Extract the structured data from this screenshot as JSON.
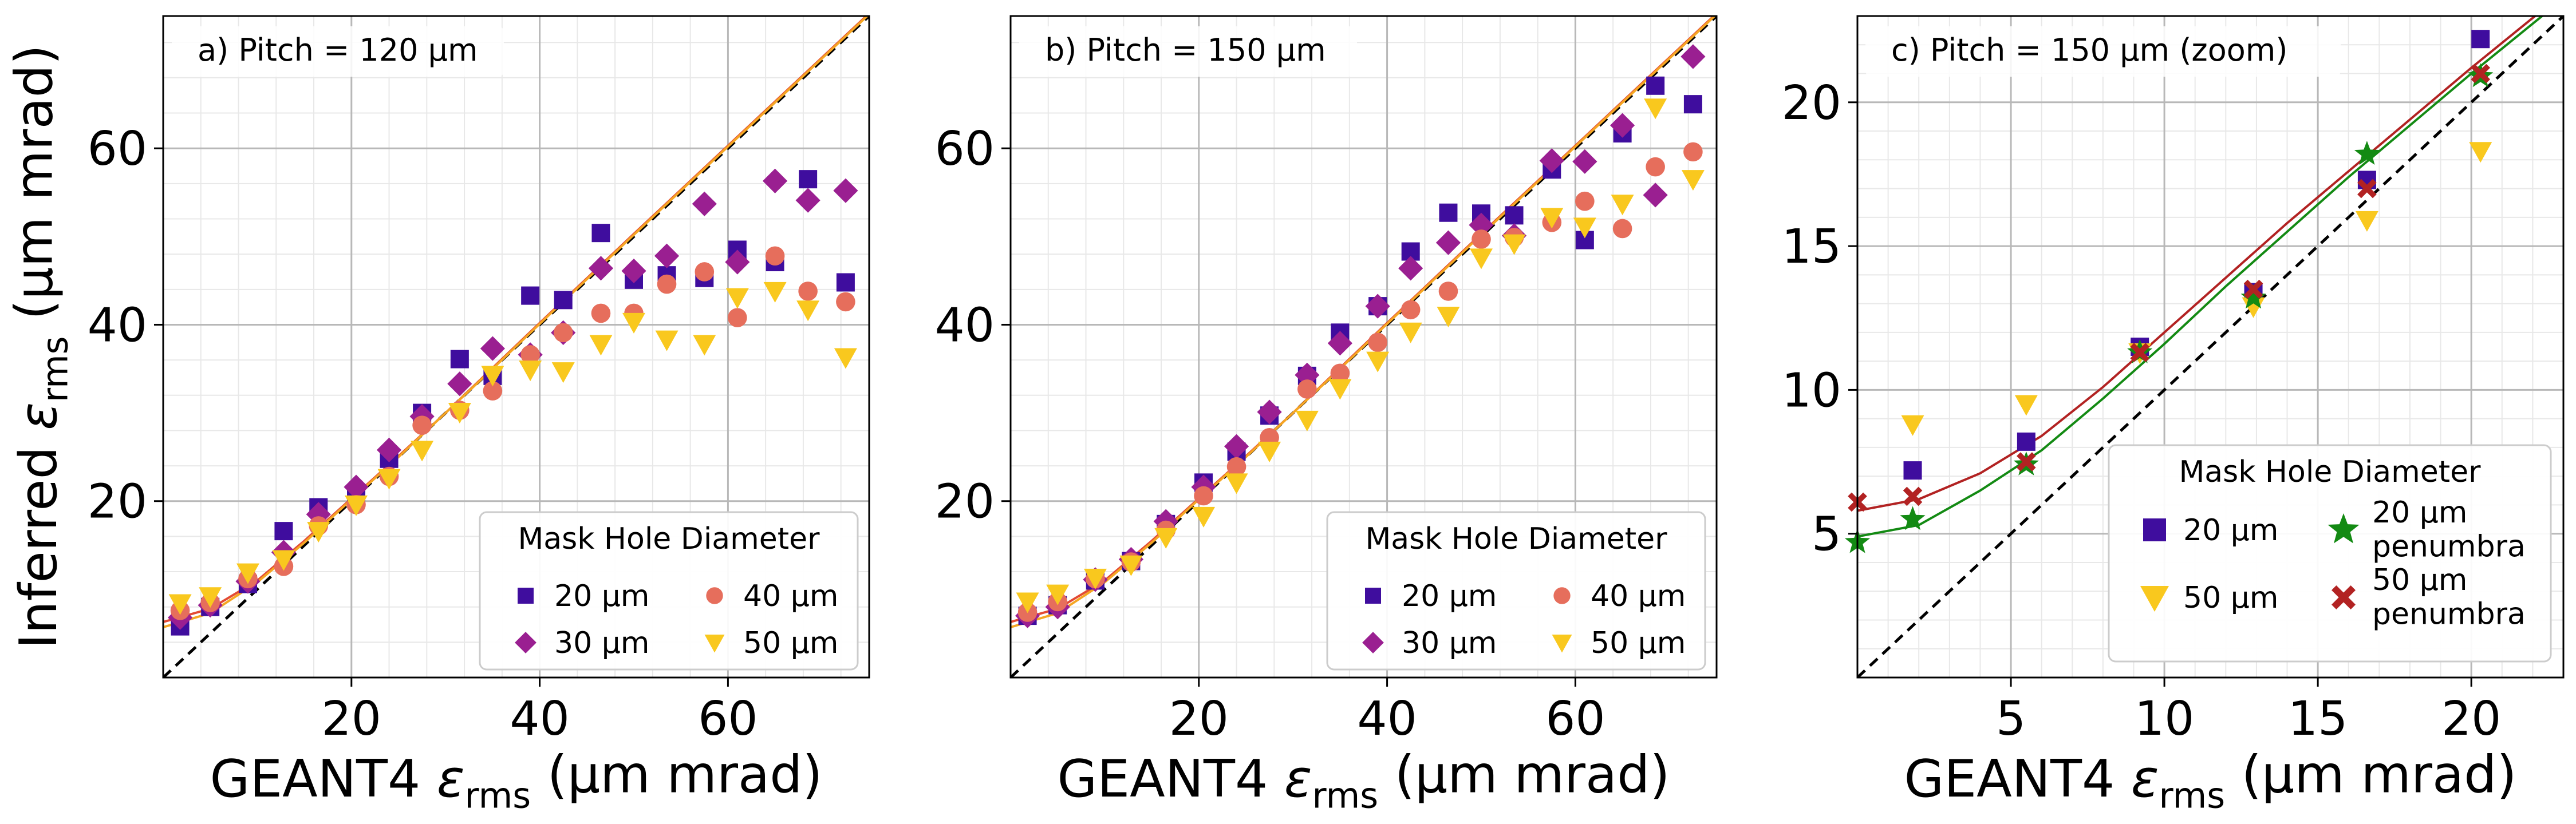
{
  "chart_data": [
    {
      "type": "scatter",
      "panel": "a",
      "title": "a) Pitch = 120 µm",
      "xlabel": "GEANT4 ε_rms (µm mrad)",
      "ylabel": "Inferred ε_rms (µm mrad)",
      "xlim": [
        0,
        75
      ],
      "ylim": [
        0,
        75
      ],
      "xticks": [
        20,
        40,
        60
      ],
      "yticks": [
        20,
        40,
        60
      ],
      "legend": {
        "title": "Mask Hole Diameter",
        "position": "lower right"
      },
      "diagonal": true,
      "curves": [
        {
          "name": "fit-red",
          "color": "#e34a33",
          "x": [
            0,
            5,
            10,
            15,
            20,
            25,
            30,
            35,
            40,
            50,
            60,
            75
          ],
          "y": [
            6.3,
            7.8,
            11.0,
            15.5,
            20.3,
            25.1,
            30.0,
            35.1,
            40.2,
            50.3,
            60.3,
            75.3
          ]
        },
        {
          "name": "fit-orange",
          "color": "#f5a623",
          "x": [
            0,
            5,
            10,
            15,
            20,
            25,
            30,
            35,
            40,
            50,
            60,
            75
          ],
          "y": [
            5.7,
            7.3,
            10.8,
            15.3,
            20.2,
            25.0,
            30.0,
            35.0,
            40.1,
            50.2,
            60.2,
            75.2
          ]
        }
      ],
      "series": [
        {
          "name": "20 µm",
          "marker": "square",
          "color": "#3f0d9e",
          "points": [
            [
              1.8,
              5.8
            ],
            [
              5,
              8
            ],
            [
              9,
              10.6
            ],
            [
              12.8,
              16.6
            ],
            [
              16.5,
              19.3
            ],
            [
              20.5,
              20.8
            ],
            [
              24,
              24.8
            ],
            [
              27.5,
              30
            ],
            [
              31.5,
              36.1
            ],
            [
              35,
              34.2
            ],
            [
              39,
              43.3
            ],
            [
              42.5,
              42.8
            ],
            [
              46.5,
              50.4
            ],
            [
              50,
              45.1
            ],
            [
              53.5,
              45.6
            ],
            [
              57.5,
              45.3
            ],
            [
              61,
              48.5
            ],
            [
              65,
              47.1
            ],
            [
              68.5,
              56.5
            ],
            [
              72.5,
              44.8
            ]
          ]
        },
        {
          "name": "30 µm",
          "marker": "diamond",
          "color": "#9a1f91",
          "points": [
            [
              1.8,
              6.8
            ],
            [
              5,
              8.2
            ],
            [
              9,
              10.9
            ],
            [
              12.8,
              14.2
            ],
            [
              16.5,
              18.5
            ],
            [
              20.5,
              21.6
            ],
            [
              24,
              25.8
            ],
            [
              27.5,
              29.6
            ],
            [
              31.5,
              33.3
            ],
            [
              35,
              37.3
            ],
            [
              39,
              36.6
            ],
            [
              42.5,
              39.1
            ],
            [
              46.5,
              46.4
            ],
            [
              50,
              46.1
            ],
            [
              53.5,
              47.8
            ],
            [
              57.5,
              53.7
            ],
            [
              61,
              47.1
            ],
            [
              65,
              56.3
            ],
            [
              68.5,
              54.1
            ],
            [
              72.5,
              55.2
            ]
          ]
        },
        {
          "name": "40 µm",
          "marker": "circle",
          "color": "#e66e5c",
          "points": [
            [
              1.8,
              7.6
            ],
            [
              5,
              8.5
            ],
            [
              9,
              11.2
            ],
            [
              12.8,
              12.6
            ],
            [
              16.5,
              17.2
            ],
            [
              20.5,
              19.6
            ],
            [
              24,
              22.8
            ],
            [
              27.5,
              28.6
            ],
            [
              31.5,
              30.3
            ],
            [
              35,
              32.5
            ],
            [
              39,
              36.6
            ],
            [
              42.5,
              39.1
            ],
            [
              46.5,
              41.3
            ],
            [
              50,
              41.3
            ],
            [
              53.5,
              44.6
            ],
            [
              57.5,
              46
            ],
            [
              61,
              40.8
            ],
            [
              65,
              47.8
            ],
            [
              68.5,
              43.8
            ],
            [
              72.5,
              42.6
            ]
          ]
        },
        {
          "name": "50 µm",
          "marker": "triangle",
          "color": "#f9c81e",
          "points": [
            [
              1.8,
              8.4
            ],
            [
              5,
              9.2
            ],
            [
              9,
              11.9
            ],
            [
              12.8,
              13.4
            ],
            [
              16.5,
              16.6
            ],
            [
              20.5,
              19.6
            ],
            [
              24,
              22.6
            ],
            [
              27.5,
              25.8
            ],
            [
              31.5,
              30.1
            ],
            [
              35,
              34.3
            ],
            [
              39,
              34.9
            ],
            [
              42.5,
              34.7
            ],
            [
              46.5,
              37.8
            ],
            [
              50,
              40.3
            ],
            [
              53.5,
              38.3
            ],
            [
              57.5,
              37.8
            ],
            [
              61,
              43.1
            ],
            [
              65,
              43.8
            ],
            [
              68.5,
              41.7
            ],
            [
              72.5,
              36.3
            ]
          ]
        }
      ]
    },
    {
      "type": "scatter",
      "panel": "b",
      "title": "b) Pitch = 150 µm",
      "xlabel": "GEANT4 ε_rms (µm mrad)",
      "ylabel": "",
      "xlim": [
        0,
        75
      ],
      "ylim": [
        0,
        75
      ],
      "xticks": [
        20,
        40,
        60
      ],
      "yticks": [
        20,
        40,
        60
      ],
      "legend": {
        "title": "Mask Hole Diameter",
        "position": "lower right"
      },
      "diagonal": true,
      "curves": [
        {
          "name": "fit-red",
          "color": "#e34a33",
          "x": [
            0,
            5,
            10,
            15,
            20,
            25,
            30,
            35,
            40,
            50,
            60,
            75
          ],
          "y": [
            6.3,
            7.8,
            11.0,
            15.5,
            20.3,
            25.1,
            30.0,
            35.1,
            40.2,
            50.3,
            60.3,
            75.3
          ]
        },
        {
          "name": "fit-orange",
          "color": "#f5a623",
          "x": [
            0,
            5,
            10,
            15,
            20,
            25,
            30,
            35,
            40,
            50,
            60,
            75
          ],
          "y": [
            5.7,
            7.3,
            10.8,
            15.3,
            20.2,
            25.0,
            30.0,
            35.0,
            40.1,
            50.2,
            60.2,
            75.2
          ]
        }
      ],
      "series": [
        {
          "name": "20 µm",
          "marker": "square",
          "color": "#3f0d9e",
          "points": [
            [
              1.8,
              7
            ],
            [
              5,
              8.2
            ],
            [
              9,
              11
            ],
            [
              12.8,
              13.2
            ],
            [
              16.5,
              17.4
            ],
            [
              20.5,
              22.1
            ],
            [
              24,
              25.6
            ],
            [
              27.5,
              29.7
            ],
            [
              31.5,
              34.2
            ],
            [
              35,
              39.1
            ],
            [
              39,
              42.1
            ],
            [
              42.5,
              48.3
            ],
            [
              46.5,
              52.7
            ],
            [
              50,
              52.6
            ],
            [
              53.5,
              52.4
            ],
            [
              57.5,
              57.6
            ],
            [
              61,
              49.6
            ],
            [
              65,
              61.7
            ],
            [
              68.5,
              67.1
            ],
            [
              72.5,
              65
            ]
          ]
        },
        {
          "name": "30 µm",
          "marker": "diamond",
          "color": "#9a1f91",
          "points": [
            [
              1.8,
              7
            ],
            [
              5,
              8
            ],
            [
              9,
              11.1
            ],
            [
              12.8,
              13.4
            ],
            [
              16.5,
              17.7
            ],
            [
              20.5,
              21.6
            ],
            [
              24,
              26.2
            ],
            [
              27.5,
              30.1
            ],
            [
              31.5,
              34.3
            ],
            [
              35,
              37.9
            ],
            [
              39,
              42.1
            ],
            [
              42.5,
              46.4
            ],
            [
              46.5,
              49.3
            ],
            [
              50,
              51.3
            ],
            [
              53.5,
              50.1
            ],
            [
              57.5,
              58.6
            ],
            [
              61,
              58.5
            ],
            [
              65,
              62.6
            ],
            [
              68.5,
              54.7
            ],
            [
              72.5,
              70.4
            ]
          ]
        },
        {
          "name": "40 µm",
          "marker": "circle",
          "color": "#e66e5c",
          "points": [
            [
              1.8,
              7.4
            ],
            [
              5,
              8.6
            ],
            [
              9,
              11.2
            ],
            [
              12.8,
              13.1
            ],
            [
              16.5,
              16.7
            ],
            [
              20.5,
              20.6
            ],
            [
              24,
              23.9
            ],
            [
              27.5,
              27.2
            ],
            [
              31.5,
              32.7
            ],
            [
              35,
              34.5
            ],
            [
              39,
              38
            ],
            [
              42.5,
              41.7
            ],
            [
              46.5,
              43.8
            ],
            [
              50,
              49.7
            ],
            [
              53.5,
              49.9
            ],
            [
              57.5,
              51.6
            ],
            [
              61,
              54
            ],
            [
              65,
              50.9
            ],
            [
              68.5,
              57.9
            ],
            [
              72.5,
              59.6
            ]
          ]
        },
        {
          "name": "50 µm",
          "marker": "triangle",
          "color": "#f9c81e",
          "points": [
            [
              1.8,
              8.6
            ],
            [
              5,
              9.5
            ],
            [
              9,
              11.3
            ],
            [
              12.8,
              12.8
            ],
            [
              16.5,
              15.9
            ],
            [
              20.5,
              18.3
            ],
            [
              24,
              22.1
            ],
            [
              27.5,
              25.7
            ],
            [
              31.5,
              29.2
            ],
            [
              35,
              32.8
            ],
            [
              39,
              35.9
            ],
            [
              42.5,
              39.2
            ],
            [
              46.5,
              41
            ],
            [
              50,
              47.6
            ],
            [
              53.5,
              49.2
            ],
            [
              57.5,
              52.2
            ],
            [
              61,
              51.1
            ],
            [
              65,
              53.7
            ],
            [
              68.5,
              64.6
            ],
            [
              72.5,
              56.5
            ]
          ]
        }
      ]
    },
    {
      "type": "scatter",
      "panel": "c",
      "title": "c) Pitch = 150 µm (zoom)",
      "xlabel": "GEANT4 ε_rms (µm mrad)",
      "ylabel": "",
      "xlim": [
        0,
        23
      ],
      "ylim": [
        0,
        23
      ],
      "xticks": [
        5,
        10,
        15,
        20
      ],
      "yticks": [
        5,
        10,
        15,
        20
      ],
      "legend": {
        "title": "Mask Hole Diameter",
        "position": "lower right"
      },
      "diagonal": true,
      "curves": [
        {
          "name": "fit-darkred",
          "color": "#b22222",
          "x": [
            0,
            2,
            4,
            6,
            8,
            10,
            12,
            14,
            16,
            18,
            20,
            23
          ],
          "y": [
            5.8,
            6.2,
            7.1,
            8.4,
            10.1,
            12.0,
            13.9,
            15.8,
            17.6,
            19.4,
            21.2,
            23.8
          ]
        },
        {
          "name": "fit-green",
          "color": "#138a13",
          "x": [
            0,
            2,
            4,
            6,
            8,
            10,
            12,
            14,
            16,
            18,
            20,
            23
          ],
          "y": [
            4.9,
            5.3,
            6.5,
            7.9,
            9.7,
            11.6,
            13.6,
            15.5,
            17.4,
            19.2,
            21.0,
            23.6
          ]
        }
      ],
      "series": [
        {
          "name": "20 µm",
          "marker": "square",
          "color": "#3f0d9e",
          "points": [
            [
              1.8,
              7.2
            ],
            [
              5.5,
              8.2
            ],
            [
              9.2,
              11.5
            ],
            [
              12.9,
              13.4
            ],
            [
              16.6,
              17.3
            ],
            [
              20.3,
              22.2
            ]
          ]
        },
        {
          "name": "50 µm",
          "marker": "triangle",
          "color": "#f9c81e",
          "points": [
            [
              1.8,
              8.8
            ],
            [
              5.5,
              9.5
            ],
            [
              9.2,
              11.3
            ],
            [
              12.9,
              12.9
            ],
            [
              16.6,
              15.9
            ],
            [
              20.3,
              18.3
            ]
          ]
        },
        {
          "name": "20 µm penumbra",
          "marker": "star",
          "color": "#138a13",
          "points": [
            [
              0,
              4.7
            ],
            [
              1.8,
              5.5
            ],
            [
              5.5,
              7.4
            ],
            [
              9.2,
              11.3
            ],
            [
              12.9,
              13.2
            ],
            [
              16.6,
              18.2
            ],
            [
              20.3,
              20.9
            ]
          ]
        },
        {
          "name": "50 µm penumbra",
          "marker": "x",
          "color": "#b22222",
          "points": [
            [
              0,
              6.1
            ],
            [
              1.8,
              6.3
            ],
            [
              5.5,
              7.5
            ],
            [
              9.2,
              11.3
            ],
            [
              12.9,
              13.5
            ],
            [
              16.6,
              17
            ],
            [
              20.3,
              21
            ]
          ]
        }
      ]
    }
  ]
}
